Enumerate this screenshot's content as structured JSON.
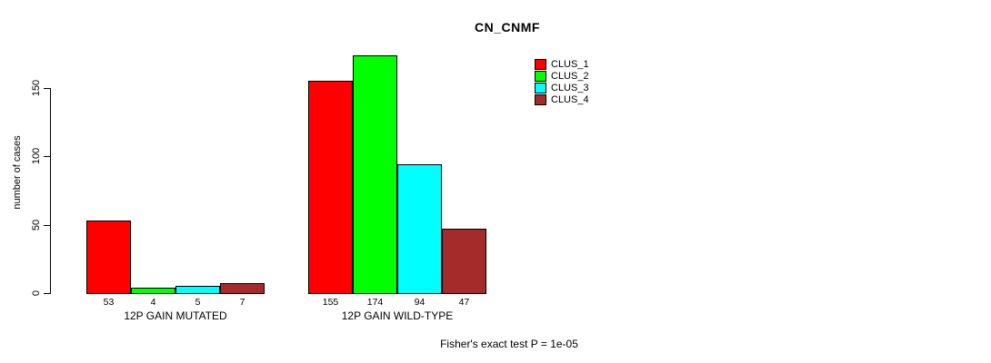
{
  "chart_data": {
    "type": "bar",
    "title": "CN_CNMF",
    "xlabel": "",
    "ylabel": "number of cases",
    "categories": [
      "12P GAIN MUTATED",
      "12P GAIN WILD-TYPE"
    ],
    "series": [
      {
        "name": "CLUS_1",
        "color": "#FF0000",
        "values": [
          53,
          155
        ]
      },
      {
        "name": "CLUS_2",
        "color": "#00FF00",
        "values": [
          4,
          174
        ]
      },
      {
        "name": "CLUS_3",
        "color": "#00FFFF",
        "values": [
          5,
          94
        ]
      },
      {
        "name": "CLUS_4",
        "color": "#A52A2A",
        "values": [
          7,
          47
        ]
      }
    ],
    "yticks": [
      0,
      50,
      100,
      150
    ],
    "ylim": [
      0,
      174
    ],
    "grid": false,
    "legend_position": "top-right",
    "bar_value_labels": [
      [
        53,
        4,
        5,
        7
      ],
      [
        155,
        174,
        94,
        47
      ]
    ],
    "annotation": "Fisher's exact test P = 1e-05"
  }
}
